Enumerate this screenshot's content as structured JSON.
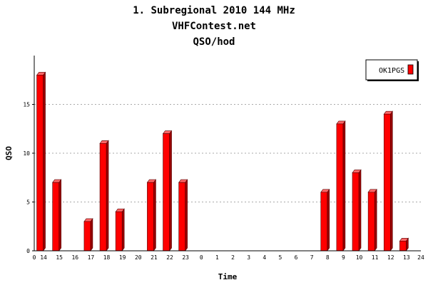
{
  "title_lines": [
    "1. Subregional 2010 144 MHz",
    "VHFContest.net",
    "QSO/hod"
  ],
  "chart_data": {
    "type": "bar",
    "title": "1. Subregional 2010 144 MHz",
    "subtitle": [
      "VHFContest.net",
      "QSO/hod"
    ],
    "xlabel": "Time",
    "ylabel": "QSO",
    "ylim": [
      0,
      20
    ],
    "yticks": [
      0,
      5,
      10,
      15
    ],
    "grid": true,
    "legend_position": "top-right",
    "x_axis_start_label": "0",
    "x_axis_end_label": "24",
    "categories": [
      "14",
      "15",
      "16",
      "17",
      "18",
      "19",
      "20",
      "21",
      "22",
      "23",
      "0",
      "1",
      "2",
      "3",
      "4",
      "5",
      "6",
      "7",
      "8",
      "9",
      "10",
      "11",
      "12",
      "13"
    ],
    "series": [
      {
        "name": "OK1PGS",
        "color": "#ff0000",
        "values": [
          18,
          7,
          0,
          3,
          11,
          4,
          0,
          7,
          12,
          7,
          0,
          0,
          0,
          0,
          0,
          0,
          0,
          0,
          6,
          13,
          8,
          6,
          14,
          1
        ]
      }
    ]
  }
}
